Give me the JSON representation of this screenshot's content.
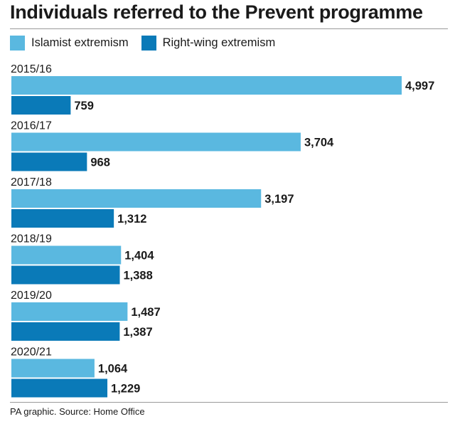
{
  "title": "Individuals referred to the Prevent programme",
  "source": "PA graphic. Source: Home Office",
  "colors": {
    "islamist": "#5ab8e0",
    "right_wing": "#0a7ab8"
  },
  "legend": [
    "Islamist extremism",
    "Right-wing extremism"
  ],
  "chart_data": {
    "type": "bar",
    "orientation": "horizontal",
    "categories": [
      "2015/16",
      "2016/17",
      "2017/18",
      "2018/19",
      "2019/20",
      "2020/21"
    ],
    "series": [
      {
        "name": "Islamist extremism",
        "values": [
          4997,
          3704,
          3197,
          1404,
          1487,
          1064
        ]
      },
      {
        "name": "Right-wing extremism",
        "values": [
          759,
          968,
          1312,
          1388,
          1387,
          1229
        ]
      }
    ],
    "value_labels": {
      "Islamist extremism": [
        "4,997",
        "3,704",
        "3,197",
        "1,404",
        "1,487",
        "1,064"
      ],
      "Right-wing extremism": [
        "759",
        "968",
        "1,312",
        "1,388",
        "1,387",
        "1,229"
      ]
    },
    "xlim": [
      0,
      4997
    ],
    "grid": false,
    "legend_position": "top-left"
  }
}
